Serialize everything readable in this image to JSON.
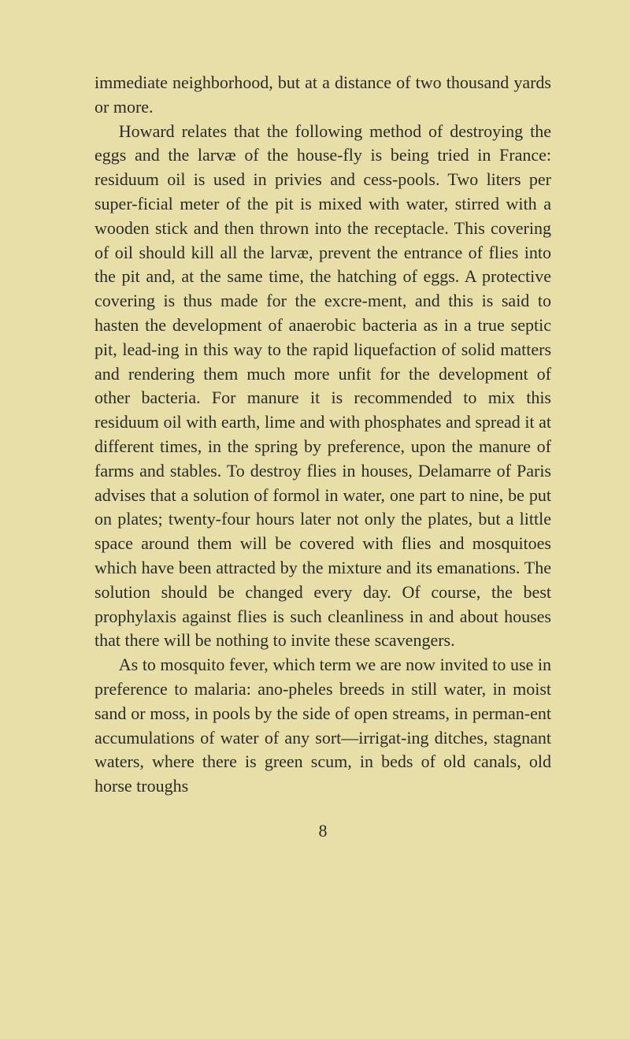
{
  "page": {
    "background_color": "#e8dfa8",
    "text_color": "#2a2a28",
    "font_size": 22,
    "line_height": 1.4,
    "paragraphs": [
      {
        "text": "immediate neighborhood, but at a distance of two thousand yards or more.",
        "indent": false
      },
      {
        "text": "Howard relates that the following method of destroying the eggs and the larvæ of the house-fly is being tried in France: residuum oil is used in privies and cess-pools. Two liters per super-ficial meter of the pit is mixed with water, stirred with a wooden stick and then thrown into the receptacle. This covering of oil should kill all the larvæ, prevent the entrance of flies into the pit and, at the same time, the hatching of eggs. A protective covering is thus made for the excre-ment, and this is said to hasten the development of anaerobic bacteria as in a true septic pit, lead-ing in this way to the rapid liquefaction of solid matters and rendering them much more unfit for the development of other bacteria. For manure it is recommended to mix this residuum oil with earth, lime and with phosphates and spread it at different times, in the spring by preference, upon the manure of farms and stables. To destroy flies in houses, Delamarre of Paris advises that a solution of formol in water, one part to nine, be put on plates; twenty-four hours later not only the plates, but a little space around them will be covered with flies and mosquitoes which have been attracted by the mixture and its emanations. The solution should be changed every day. Of course, the best prophylaxis against flies is such cleanliness in and about houses that there will be nothing to invite these scavengers.",
        "indent": true
      },
      {
        "text": "As to mosquito fever, which term we are now invited to use in preference to malaria: ano-pheles breeds in still water, in moist sand or moss, in pools by the side of open streams, in perman-ent accumulations of water of any sort—irrigat-ing ditches, stagnant waters, where there is green scum, in beds of old canals, old horse troughs",
        "indent": true
      }
    ],
    "page_number": "8"
  }
}
